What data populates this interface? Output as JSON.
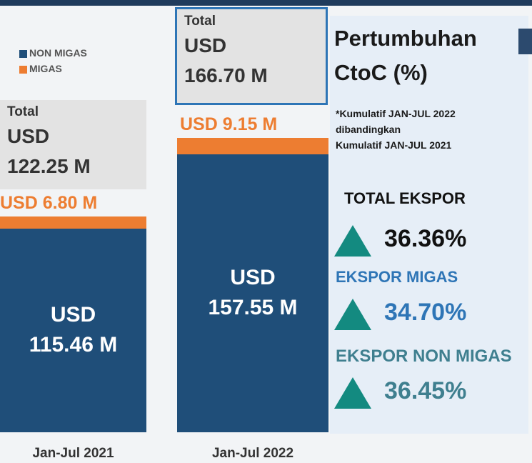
{
  "chart_data": {
    "type": "bar",
    "stacked": true,
    "categories": [
      "Jan-Jul 2021",
      "Jan-Jul 2022"
    ],
    "series": [
      {
        "name": "NON MIGAS",
        "color": "#1f4e79",
        "values": [
          115.46,
          157.55
        ],
        "value_labels": [
          "USD 115.46 M",
          "USD 157.55 M"
        ]
      },
      {
        "name": "MIGAS",
        "color": "#ed7d31",
        "values": [
          6.8,
          9.15
        ],
        "value_labels": [
          "USD 6.80 M",
          "USD 9.15 M"
        ]
      }
    ],
    "totals": {
      "label": "Total",
      "values": [
        122.25,
        166.7
      ],
      "value_labels": [
        "USD 122.25 M",
        "USD 166.70 M"
      ]
    },
    "ylim": [
      0,
      245
    ]
  },
  "growth": {
    "title": "Pertumbuhan CtoC (%)",
    "note": [
      "*Kumulatif JAN-JUL 2022",
      "dibandingkan",
      "Kumulatif JAN-JUL 2021"
    ],
    "items": [
      {
        "label": "TOTAL EKSPOR",
        "value": 36.36,
        "value_label": "36.36%"
      },
      {
        "label": "EKSPOR MIGAS",
        "value": 34.7,
        "value_label": "34.70%"
      },
      {
        "label": "EKSPOR NON MIGAS",
        "value": 36.45,
        "value_label": "36.45%"
      }
    ]
  }
}
